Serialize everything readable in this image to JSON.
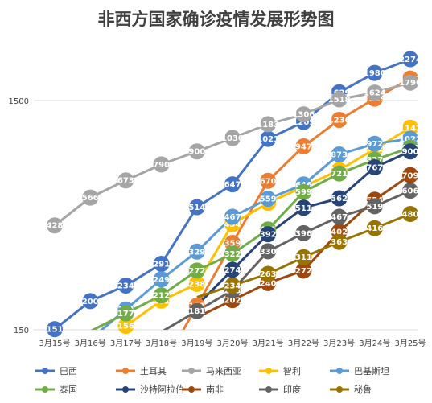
{
  "chart_data": {
    "type": "line",
    "title": "非西方国家确诊疫情发展形势图",
    "categories": [
      "3月15号",
      "3月16号",
      "3月17号",
      "3月18号",
      "3月19号",
      "3月20号",
      "3月21号",
      "3月22号",
      "3月23号",
      "3月24号",
      "3月25号"
    ],
    "y_scale": "log",
    "ylim": [
      150,
      2300
    ],
    "y_ticks": [
      150,
      1500
    ],
    "y_tick_labels": [
      "150",
      "1500"
    ],
    "gridlines": true,
    "legend_position": "bottom",
    "series": [
      {
        "name": "巴西",
        "color": "#4472C4",
        "values": [
          151,
          200,
          234,
          291,
          514,
          647,
          1021,
          1209,
          1629,
          1980,
          2274
        ],
        "labels": [
          "151",
          "200",
          "234",
          "291",
          "514",
          "647",
          "1021",
          "1209",
          "1629",
          "1980",
          "2274"
        ]
      },
      {
        "name": "土耳其",
        "color": "#ED7D31",
        "values": [
          null,
          null,
          null,
          null,
          191,
          359,
          670,
          947,
          1236,
          1529,
          1872
        ],
        "labels": [
          "",
          "",
          "",
          "",
          "191",
          "359",
          "670",
          "947",
          "1236",
          "1529",
          "1872"
        ]
      },
      {
        "name": "马来西亚",
        "color": "#A5A5A5",
        "values": [
          428,
          566,
          673,
          790,
          900,
          1030,
          1183,
          1306,
          1518,
          1624,
          1796
        ],
        "labels": [
          "428",
          "566",
          "673",
          "790",
          "900",
          "1030",
          "1183",
          "1306",
          "1518",
          "1624",
          "1796"
        ]
      },
      {
        "name": "智利",
        "color": "#FFC000",
        "values": [
          null,
          null,
          156,
          201,
          238,
          434,
          537,
          632,
          746,
          922,
          1142
        ],
        "labels": [
          "",
          "",
          "156",
          "201",
          "238",
          "434",
          "537",
          "632",
          "746",
          "922",
          "1142"
        ]
      },
      {
        "name": "巴基斯坦",
        "color": "#5B9BD5",
        "values": [
          null,
          null,
          184,
          249,
          329,
          467,
          559,
          646,
          873,
          972,
          1022
        ],
        "labels": [
          "",
          "",
          "184",
          "249",
          "329",
          "467",
          "559",
          "646",
          "873",
          "972",
          "1022"
        ]
      },
      {
        "name": "泰国",
        "color": "#70AD47",
        "values": [
          null,
          null,
          177,
          212,
          272,
          322,
          411,
          599,
          721,
          827,
          934
        ],
        "labels": [
          "",
          "",
          "177",
          "212",
          "272",
          "322",
          "411",
          "599",
          "721",
          "827",
          "934"
        ]
      },
      {
        "name": "沙特阿拉伯",
        "color": "#264478",
        "values": [
          null,
          null,
          null,
          null,
          null,
          274,
          392,
          511,
          562,
          767,
          900
        ],
        "labels": [
          "",
          "",
          "",
          "",
          "",
          "274",
          "392",
          "511",
          "562",
          "767",
          "900"
        ]
      },
      {
        "name": "南非",
        "color": "#9E480E",
        "values": [
          null,
          null,
          null,
          null,
          null,
          202,
          240,
          272,
          402,
          554,
          709
        ],
        "labels": [
          "",
          "",
          "",
          "",
          "",
          "202",
          "240",
          "272",
          "402",
          "554",
          "709"
        ]
      },
      {
        "name": "印度",
        "color": "#636363",
        "values": [
          null,
          null,
          null,
          null,
          181,
          223,
          330,
          396,
          467,
          519,
          606
        ],
        "labels": [
          "",
          "",
          "",
          "",
          "181",
          "223",
          "330",
          "396",
          "467",
          "519",
          "606"
        ]
      },
      {
        "name": "秘鲁",
        "color": "#997300",
        "values": [
          null,
          null,
          null,
          null,
          null,
          234,
          263,
          311,
          363,
          416,
          480
        ],
        "labels": [
          "",
          "",
          "",
          "",
          "",
          "234",
          "263",
          "311",
          "363",
          "416",
          "480"
        ]
      }
    ]
  }
}
